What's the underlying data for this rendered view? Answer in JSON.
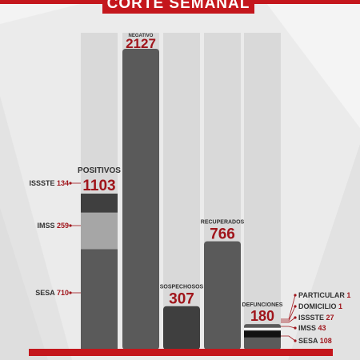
{
  "title": "CORTE SEMANAL",
  "colors": {
    "accent": "#c4161c",
    "track": "#d9d9d9",
    "bar_dark": "#3f3f3f",
    "bar_mid": "#5a5a5a",
    "bar_light": "#a6a6a6",
    "text_dark": "#333333",
    "value_red": "#a0151b"
  },
  "chart_data": {
    "type": "bar",
    "title": "CORTE SEMANAL",
    "ylim": [
      0,
      2127
    ],
    "categories": [
      "POSITIVOS",
      "NEGATIVO",
      "SOSPECHOSOS",
      "RECUPERADOS",
      "DEFUNCIONES"
    ],
    "values": [
      1103,
      2127,
      307,
      766,
      180
    ],
    "value_labels": [
      "1103",
      "2127",
      "307",
      "766",
      "180"
    ],
    "breakdowns": [
      {
        "category": "POSITIVOS",
        "segments": [
          {
            "name": "SESA",
            "value": 710
          },
          {
            "name": "IMSS",
            "value": 259
          },
          {
            "name": "ISSSTE",
            "value": 134
          }
        ]
      },
      {
        "category": "DEFUNCIONES",
        "segments": [
          {
            "name": "SESA",
            "value": 108
          },
          {
            "name": "IMSS",
            "value": 43
          },
          {
            "name": "ISSSTE",
            "value": 27
          },
          {
            "name": "DOMICILIO",
            "value": 1
          },
          {
            "name": "PARTICULAR",
            "value": 1
          }
        ]
      }
    ]
  },
  "annotations": {
    "positivos": [
      {
        "name": "ISSSTE",
        "value": "134"
      },
      {
        "name": "IMSS",
        "value": "259"
      },
      {
        "name": "SESA",
        "value": "710"
      }
    ],
    "defunciones": [
      {
        "name": "PARTICULAR",
        "value": "1"
      },
      {
        "name": "DOMICILIO",
        "value": "1"
      },
      {
        "name": "ISSSTE",
        "value": "27"
      },
      {
        "name": "IMSS",
        "value": "43"
      },
      {
        "name": "SESA",
        "value": "108"
      }
    ]
  }
}
